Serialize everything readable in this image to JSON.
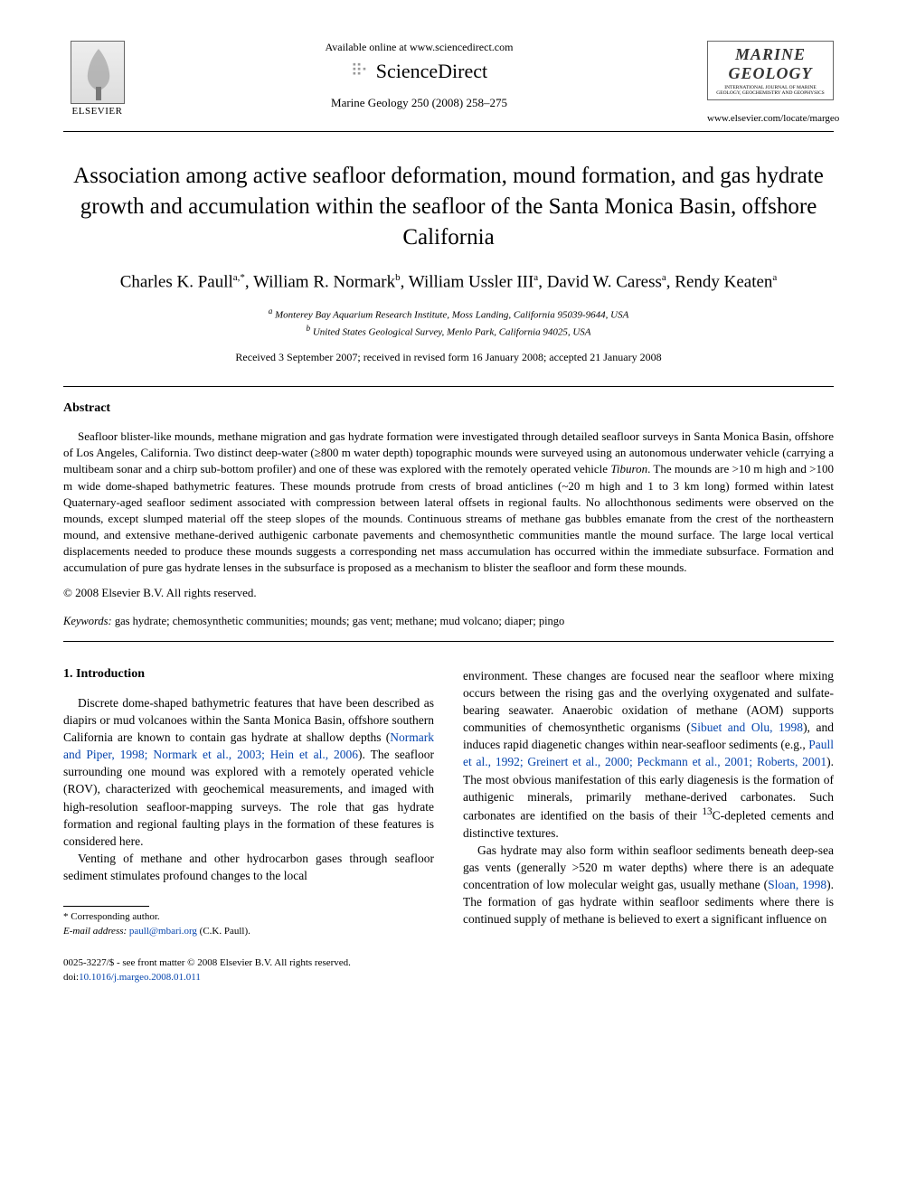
{
  "header": {
    "elsevier_label": "ELSEVIER",
    "available_online": "Available online at www.sciencedirect.com",
    "sd_brand": "ScienceDirect",
    "journal_ref": "Marine Geology 250 (2008) 258–275",
    "marine_title_1": "MARINE",
    "marine_title_2": "GEOLOGY",
    "marine_small": "INTERNATIONAL JOURNAL OF MARINE GEOLOGY, GEOCHEMISTRY AND GEOPHYSICS",
    "journal_url": "www.elsevier.com/locate/margeo"
  },
  "title": "Association among active seafloor deformation, mound formation, and gas hydrate growth and accumulation within the seafloor of the Santa Monica Basin, offshore California",
  "authors": [
    {
      "name": "Charles K. Paull",
      "aff": "a,*"
    },
    {
      "name": "William R. Normark",
      "aff": "b"
    },
    {
      "name": "William Ussler III",
      "aff": "a"
    },
    {
      "name": "David W. Caress",
      "aff": "a"
    },
    {
      "name": "Rendy Keaten",
      "aff": "a"
    }
  ],
  "affiliations": {
    "a": "Monterey Bay Aquarium Research Institute, Moss Landing, California 95039-9644, USA",
    "b": "United States Geological Survey, Menlo Park, California 94025, USA"
  },
  "dates": "Received 3 September 2007; received in revised form 16 January 2008; accepted 21 January 2008",
  "abstract": {
    "heading": "Abstract",
    "text": "Seafloor blister-like mounds, methane migration and gas hydrate formation were investigated through detailed seafloor surveys in Santa Monica Basin, offshore of Los Angeles, California. Two distinct deep-water (≥800 m water depth) topographic mounds were surveyed using an autonomous underwater vehicle (carrying a multibeam sonar and a chirp sub-bottom profiler) and one of these was explored with the remotely operated vehicle Tiburon. The mounds are >10 m high and >100 m wide dome-shaped bathymetric features. These mounds protrude from crests of broad anticlines (~20 m high and 1 to 3 km long) formed within latest Quaternary-aged seafloor sediment associated with compression between lateral offsets in regional faults. No allochthonous sediments were observed on the mounds, except slumped material off the steep slopes of the mounds. Continuous streams of methane gas bubbles emanate from the crest of the northeastern mound, and extensive methane-derived authigenic carbonate pavements and chemosynthetic communities mantle the mound surface. The large local vertical displacements needed to produce these mounds suggests a corresponding net mass accumulation has occurred within the immediate subsurface. Formation and accumulation of pure gas hydrate lenses in the subsurface is proposed as a mechanism to blister the seafloor and form these mounds.",
    "copyright": "© 2008 Elsevier B.V. All rights reserved."
  },
  "keywords": {
    "label": "Keywords:",
    "text": "gas hydrate; chemosynthetic communities; mounds; gas vent; methane; mud volcano; diaper; pingo"
  },
  "section1": {
    "heading": "1. Introduction",
    "p1_pre": "Discrete dome-shaped bathymetric features that have been described as diapirs or mud volcanoes within the Santa Monica Basin, offshore southern California are known to contain gas hydrate at shallow depths (",
    "p1_cite": "Normark and Piper, 1998; Normark et al., 2003; Hein et al., 2006",
    "p1_post": "). The seafloor surrounding one mound was explored with a remotely operated vehicle (ROV), characterized with geochemical measurements, and imaged with high-resolution seafloor-mapping surveys. The role that gas hydrate formation and regional faulting plays in the formation of these features is considered here.",
    "p2": "Venting of methane and other hydrocarbon gases through seafloor sediment stimulates profound changes to the local",
    "p3_a": "environment. These changes are focused near the seafloor where mixing occurs between the rising gas and the overlying oxygenated and sulfate-bearing seawater. Anaerobic oxidation of methane (AOM) supports communities of chemosynthetic organisms (",
    "p3_cite1": "Sibuet and Olu, 1998",
    "p3_b": "), and induces rapid diagenetic changes within near-seafloor sediments (e.g., ",
    "p3_cite2": "Paull et al., 1992; Greinert et al., 2000; Peckmann et al., 2001; Roberts, 2001",
    "p3_c": "). The most obvious manifestation of this early diagenesis is the formation of authigenic minerals, primarily methane-derived carbonates. Such carbonates are identified on the basis of their ",
    "p3_isotope": "13",
    "p3_d": "C-depleted cements and distinctive textures.",
    "p4_a": "Gas hydrate may also form within seafloor sediments beneath deep-sea gas vents (generally >520 m water depths) where there is an adequate concentration of low molecular weight gas, usually methane (",
    "p4_cite": "Sloan, 1998",
    "p4_b": "). The formation of gas hydrate within seafloor sediments where there is continued supply of methane is believed to exert a significant influence on"
  },
  "corresponding": {
    "label": "* Corresponding author.",
    "email_label": "E-mail address:",
    "email": "paull@mbari.org",
    "email_who": "(C.K. Paull)."
  },
  "footer": {
    "line1": "0025-3227/$ - see front matter © 2008 Elsevier B.V. All rights reserved.",
    "doi_label": "doi:",
    "doi": "10.1016/j.margeo.2008.01.011"
  },
  "colors": {
    "link": "#0645ad",
    "text": "#000000",
    "background": "#ffffff"
  }
}
